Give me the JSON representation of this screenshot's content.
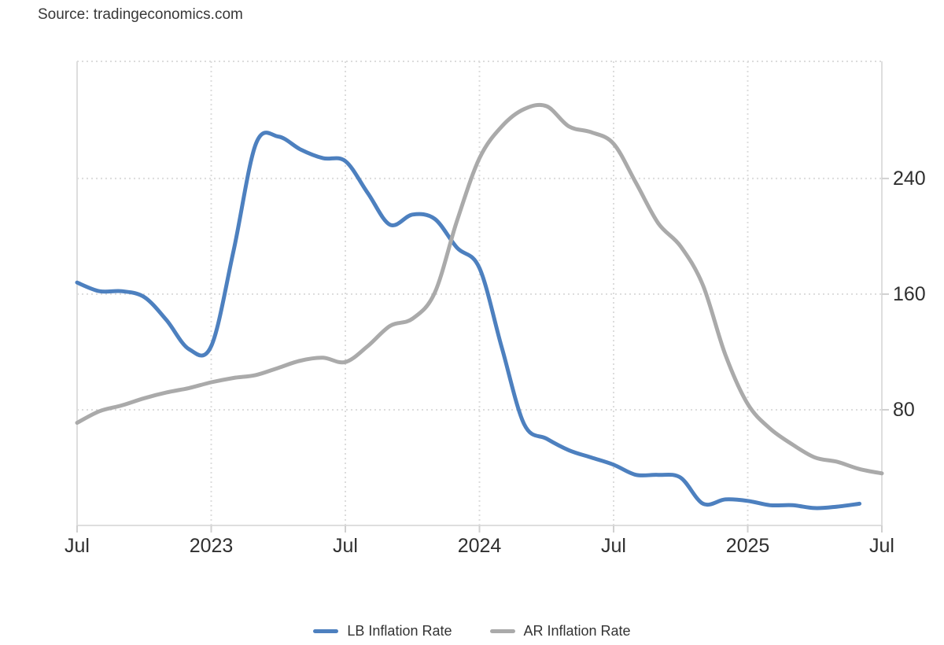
{
  "source_text": "Source: tradingeconomics.com",
  "colors": {
    "lb_line": "#4d80bf",
    "ar_line": "#aaaaaa",
    "grid_dotted": "#dcdcdc",
    "border_solid": "#dedede",
    "tick_mark": "#d0d0d0",
    "axis_text": "#2f2f2f",
    "legend_text": "#333333",
    "source_text_color": "#383838"
  },
  "legend": {
    "items": [
      {
        "label": "LB Inflation Rate",
        "series_key": "lb"
      },
      {
        "label": "AR Inflation Rate",
        "series_key": "ar"
      }
    ]
  },
  "chart_data": {
    "type": "line",
    "title": "",
    "xlabel": "",
    "ylabel": "",
    "x_start_month": "Jul 2022",
    "x_interval": "monthly",
    "x_tick_labels": [
      "Jul",
      "2023",
      "Jul",
      "2024",
      "Jul",
      "2025",
      "Jul"
    ],
    "x_tick_month_index": [
      0,
      6,
      12,
      18,
      24,
      30,
      36
    ],
    "y_ticks": [
      80,
      160,
      240
    ],
    "ylim": [
      0,
      321
    ],
    "xlim_months": [
      0,
      36
    ],
    "grid": "dotted",
    "legend_position": "bottom",
    "series": [
      {
        "name": "LB Inflation Rate",
        "color": "#4d80bf",
        "start_month_index": 0,
        "values": [
          168,
          162,
          162,
          158,
          142,
          122,
          124,
          190,
          264,
          269,
          260,
          254,
          252,
          230,
          208,
          215,
          212,
          192,
          178,
          123,
          70,
          60,
          52,
          47,
          42,
          35,
          35,
          33,
          15,
          18,
          17,
          14,
          14,
          12,
          13,
          15
        ]
      },
      {
        "name": "AR Inflation Rate",
        "color": "#aaaaaa",
        "start_month_index": 0,
        "values": [
          71,
          79,
          83,
          88,
          92,
          95,
          99,
          102,
          104,
          109,
          114,
          116,
          113,
          124,
          138,
          143,
          161,
          211,
          254,
          276,
          288,
          290,
          276,
          272,
          264,
          237,
          209,
          193,
          166,
          118,
          84,
          67,
          56,
          47,
          44,
          39,
          36
        ]
      }
    ]
  }
}
